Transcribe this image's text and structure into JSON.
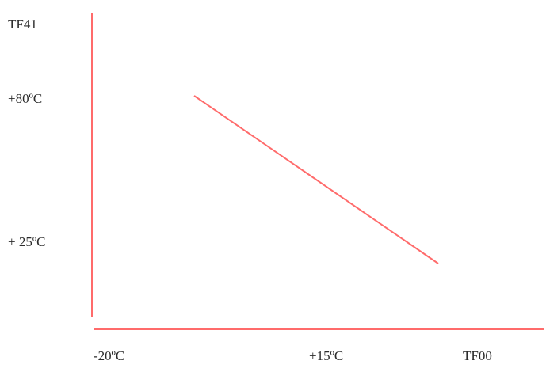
{
  "chart_data": {
    "type": "line",
    "title": "",
    "xlabel": "TF00",
    "ylabel": "TF41",
    "x_tick_labels": [
      "-20ºC",
      "+15ºC"
    ],
    "y_tick_labels": [
      "+80ºC",
      "+ 25ºC"
    ],
    "series": [
      {
        "points": [
          {
            "x": -5,
            "y": 80
          },
          {
            "x": 25,
            "y": 25
          }
        ]
      }
    ],
    "xlim": [
      -20,
      35
    ],
    "ylim": [
      25,
      80
    ],
    "grid": false,
    "legend": "none"
  },
  "colors": {
    "axis": "#ff6b6b",
    "series": "#ff6b6b",
    "text": "#2b2b2b"
  }
}
